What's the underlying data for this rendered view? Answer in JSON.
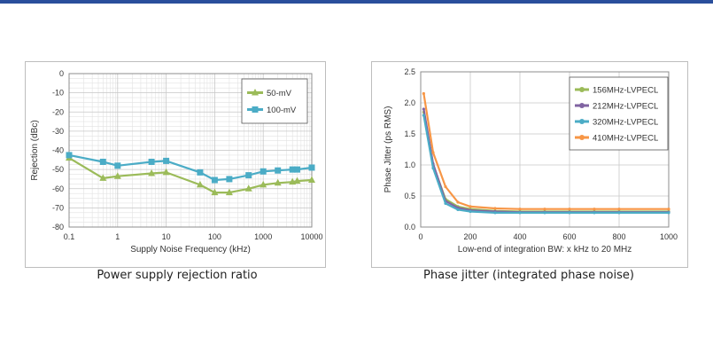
{
  "theme": {
    "top_rule": "#2a4f9c",
    "grid": "#c8c8c8",
    "axis": "#8c8c8c",
    "text": "#333333"
  },
  "captions": {
    "left": "Power supply rejection ratio",
    "right": "Phase jitter (integrated phase noise)"
  },
  "chart_data": [
    {
      "type": "line",
      "title": "",
      "xlabel": "Supply Noise Frequency (kHz)",
      "ylabel": "Rejection (dBc)",
      "xscale": "log",
      "xlim": [
        0.1,
        10000
      ],
      "ylim": [
        -80,
        0
      ],
      "xticks": [
        0.1,
        1,
        10,
        100,
        1000,
        10000
      ],
      "xtick_labels": [
        "0.1",
        "1",
        "10",
        "100",
        "1000",
        "10000"
      ],
      "yticks": [
        0,
        -10,
        -20,
        -30,
        -40,
        -50,
        -60,
        -70,
        -80
      ],
      "ytick_labels": [
        "0",
        "-10",
        "-20",
        "-30",
        "-40",
        "-50",
        "-60",
        "-70",
        "-80"
      ],
      "grid": true,
      "legend_position": "top-right",
      "series": [
        {
          "name": "50-mV",
          "color": "#9bbb59",
          "marker": "triangle",
          "x": [
            0.1,
            0.5,
            1,
            5,
            10,
            50,
            100,
            200,
            500,
            1000,
            2000,
            4000,
            5000,
            10000
          ],
          "y": [
            -44,
            -54.5,
            -53.5,
            -52,
            -51.5,
            -58,
            -62,
            -62,
            -60,
            -58,
            -57,
            -56.5,
            -56,
            -55.5
          ]
        },
        {
          "name": "100-mV",
          "color": "#4bacc6",
          "marker": "square",
          "x": [
            0.1,
            0.5,
            1,
            5,
            10,
            50,
            100,
            200,
            500,
            1000,
            2000,
            4000,
            5000,
            10000
          ],
          "y": [
            -42.5,
            -46,
            -48,
            -46,
            -45.5,
            -51.5,
            -55.5,
            -55,
            -53,
            -51,
            -50.5,
            -50,
            -50,
            -49
          ]
        }
      ]
    },
    {
      "type": "line",
      "title": "",
      "xlabel": "Low-end of integration BW: x kHz to 20 MHz",
      "ylabel": "Phase Jitter (ps RMS)",
      "xlim": [
        0,
        1000
      ],
      "ylim": [
        0,
        2.5
      ],
      "xticks": [
        0,
        200,
        400,
        600,
        800,
        1000
      ],
      "xtick_labels": [
        "0",
        "200",
        "400",
        "600",
        "800",
        "1000"
      ],
      "yticks": [
        0,
        0.5,
        1,
        1.5,
        2,
        2.5
      ],
      "ytick_labels": [
        "0.0",
        "0.5",
        "1.0",
        "1.5",
        "2.0",
        "2.5"
      ],
      "grid": true,
      "legend_position": "top-right",
      "series": [
        {
          "name": "156MHz-LVPECL",
          "color": "#9bbb59",
          "x": [
            12,
            50,
            100,
            150,
            200,
            300,
            400,
            500,
            600,
            700,
            800,
            1000
          ],
          "y": [
            1.85,
            1.0,
            0.45,
            0.33,
            0.29,
            0.26,
            0.25,
            0.25,
            0.25,
            0.25,
            0.25,
            0.25
          ]
        },
        {
          "name": "212MHz-LVPECL",
          "color": "#8064a2",
          "x": [
            12,
            50,
            100,
            150,
            200,
            300,
            400,
            500,
            600,
            700,
            800,
            1000
          ],
          "y": [
            1.9,
            1.02,
            0.42,
            0.31,
            0.27,
            0.25,
            0.24,
            0.24,
            0.24,
            0.24,
            0.24,
            0.24
          ]
        },
        {
          "name": "320MHz-LVPECL",
          "color": "#4bacc6",
          "x": [
            12,
            50,
            100,
            150,
            200,
            300,
            400,
            500,
            600,
            700,
            800,
            1000
          ],
          "y": [
            1.8,
            0.95,
            0.38,
            0.28,
            0.25,
            0.23,
            0.23,
            0.23,
            0.23,
            0.23,
            0.23,
            0.23
          ]
        },
        {
          "name": "410MHz-LVPECL",
          "color": "#f79646",
          "x": [
            12,
            50,
            100,
            150,
            200,
            300,
            400,
            500,
            600,
            700,
            800,
            1000
          ],
          "y": [
            2.15,
            1.2,
            0.65,
            0.4,
            0.33,
            0.3,
            0.29,
            0.29,
            0.29,
            0.29,
            0.29,
            0.29
          ]
        }
      ]
    }
  ]
}
